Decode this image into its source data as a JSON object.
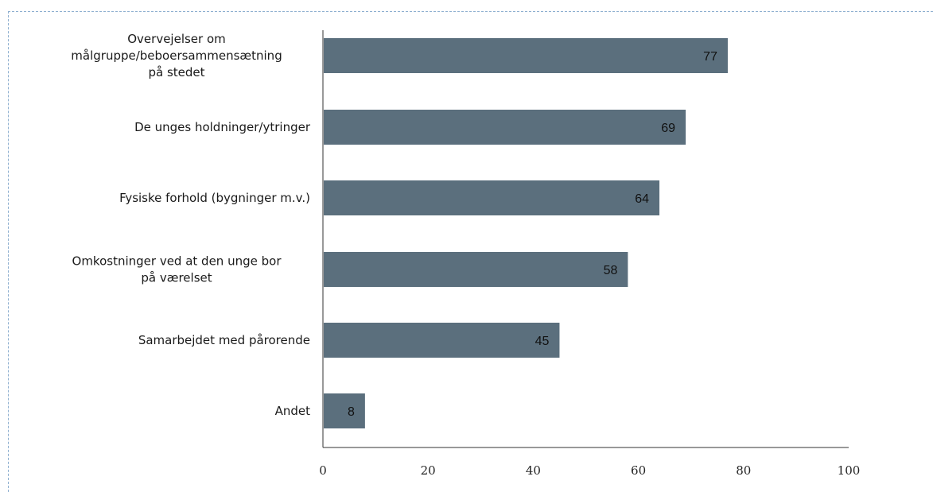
{
  "chart_data": {
    "type": "bar",
    "orientation": "horizontal",
    "title": "",
    "xlabel": "",
    "ylabel": "",
    "categories": [
      "Overvejelser om målgruppe/beboersammensætning på stedet",
      "De unges holdninger/ytringer",
      "Fysiske forhold (bygninger m.v.)",
      "Omkostninger ved at den unge bor på værelset",
      "Samarbejdet med pårorende",
      "Andet"
    ],
    "category_lines": [
      [
        "Overvejelser om",
        "målgruppe/beboersammensætning",
        "på stedet"
      ],
      [
        "De unges holdninger/ytringer"
      ],
      [
        "Fysiske forhold (bygninger m.v.)"
      ],
      [
        "Omkostninger ved at den unge bor",
        "på værelset"
      ],
      [
        "Samarbejdet med pårorende"
      ],
      [
        "Andet"
      ]
    ],
    "values": [
      77,
      69,
      64,
      58,
      45,
      8
    ],
    "xlim": [
      0,
      100
    ],
    "xticks": [
      0,
      20,
      40,
      60,
      80,
      100
    ],
    "data_labels": true,
    "grid": false,
    "bar_color": "#5b6f7d"
  }
}
